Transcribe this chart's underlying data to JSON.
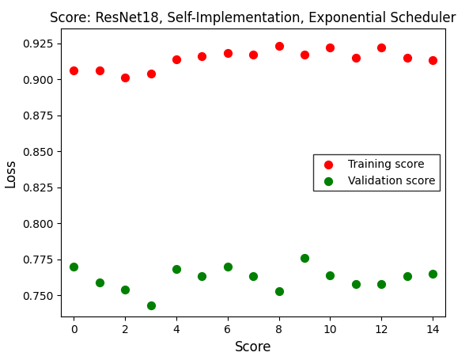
{
  "title": "Score: ResNet18, Self-Implementation, Exponential Scheduler",
  "xlabel": "Score",
  "ylabel": "Loss",
  "training_x": [
    0,
    1,
    2,
    3,
    4,
    5,
    6,
    7,
    8,
    9,
    10,
    11,
    12,
    13,
    14
  ],
  "training_y": [
    0.906,
    0.906,
    0.901,
    0.904,
    0.914,
    0.916,
    0.918,
    0.917,
    0.923,
    0.917,
    0.922,
    0.915,
    0.922,
    0.915,
    0.913
  ],
  "validation_x": [
    0,
    1,
    2,
    3,
    4,
    5,
    6,
    7,
    8,
    9,
    10,
    11,
    12,
    13,
    14
  ],
  "validation_y": [
    0.77,
    0.759,
    0.754,
    0.743,
    0.768,
    0.763,
    0.77,
    0.763,
    0.753,
    0.776,
    0.764,
    0.758,
    0.758,
    0.763,
    0.765
  ],
  "training_color": "red",
  "validation_color": "green",
  "training_label": "Training score",
  "validation_label": "Validation score",
  "marker": "o",
  "marker_size": 50,
  "ylim": [
    0.735,
    0.935
  ],
  "xlim": [
    -0.5,
    14.5
  ],
  "yticks": [
    0.75,
    0.775,
    0.8,
    0.825,
    0.85,
    0.875,
    0.9,
    0.925
  ],
  "xticks": [
    0,
    2,
    4,
    6,
    8,
    10,
    12,
    14
  ],
  "legend_loc": "center right",
  "background_color": "#ffffff",
  "title_fontsize": 12,
  "axis_label_fontsize": 12,
  "tick_fontsize": 10,
  "figwidth": 5.93,
  "figheight": 4.55,
  "dpi": 100
}
